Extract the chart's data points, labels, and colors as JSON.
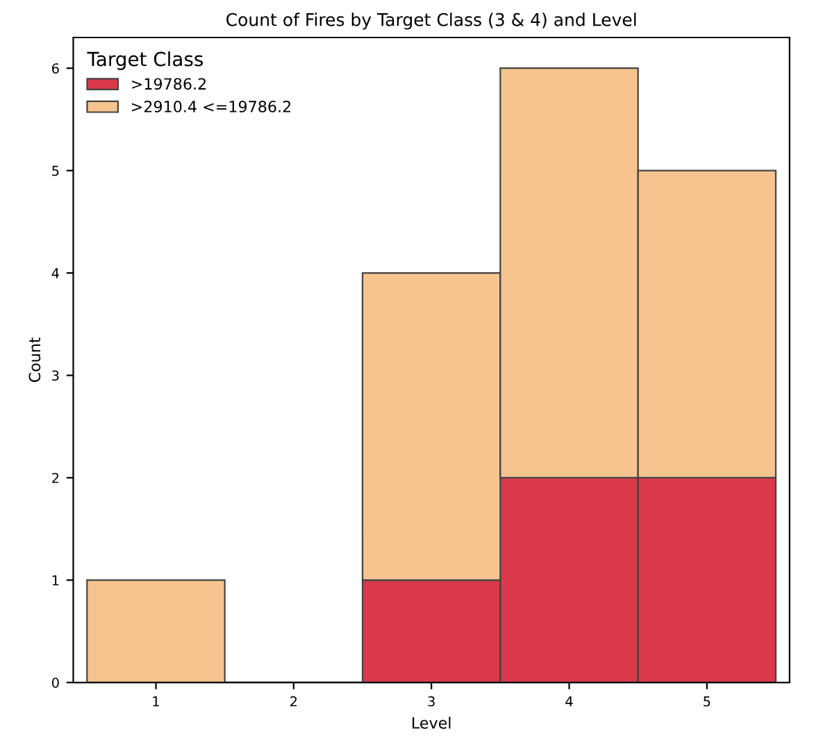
{
  "chart_data": {
    "type": "bar",
    "title": "Count of Fires by Target Class (3 & 4) and Level",
    "xlabel": "Level",
    "ylabel": "Count",
    "categories": [
      "1",
      "2",
      "3",
      "4",
      "5"
    ],
    "series": [
      {
        "name": ">19786.2",
        "color": "#d9394b",
        "values": [
          0,
          0,
          1,
          2,
          2
        ]
      },
      {
        "name": ">2910.4 <=19786.2",
        "color": "#f7c48f",
        "values": [
          1,
          0,
          3,
          4,
          3
        ]
      }
    ],
    "stacked": true,
    "ylim": [
      0,
      6.3
    ],
    "yticks": [
      0,
      1,
      2,
      3,
      4,
      5,
      6
    ],
    "grid": false,
    "legend": "top left",
    "legend_title": "Target Class"
  }
}
